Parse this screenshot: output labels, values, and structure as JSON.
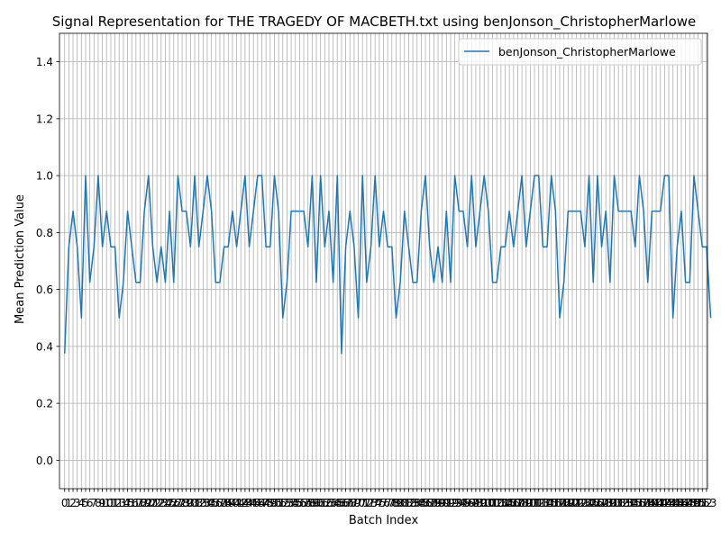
{
  "chart_data": {
    "type": "line",
    "title": "Signal Representation for THE TRAGEDY OF MACBETH.txt using benJonson_ChristopherMarlowe",
    "xlabel": "Batch Index",
    "ylabel": "Mean Prediction Value",
    "ylim": [
      -0.1,
      1.5
    ],
    "xlim": [
      -1.23,
      153.23
    ],
    "yticks": [
      0.0,
      0.2,
      0.4,
      0.6,
      0.8,
      1.0,
      1.2,
      1.4
    ],
    "ytick_labels": [
      "0.0",
      "0.2",
      "0.4",
      "0.6",
      "0.8",
      "1.0",
      "1.2",
      "1.4"
    ],
    "xticks_start": 0,
    "xticks_end": 153,
    "grid": true,
    "legend_position": "top-right",
    "colors": {
      "series": "#1f77b4",
      "grid": "#b0b0b0",
      "axes": "#000000",
      "background": "#ffffff"
    },
    "series": [
      {
        "name": "benJonson_ChristopherMarlowe",
        "x_start": 0,
        "values": [
          0.375,
          0.75,
          0.875,
          0.75,
          0.5,
          1.0,
          0.625,
          0.75,
          1.0,
          0.75,
          0.875,
          0.75,
          0.75,
          0.5,
          0.625,
          0.875,
          0.75,
          0.625,
          0.625,
          0.875,
          1.0,
          0.75,
          0.625,
          0.75,
          0.625,
          0.875,
          0.625,
          1.0,
          0.875,
          0.875,
          0.75,
          1.0,
          0.75,
          0.875,
          1.0,
          0.875,
          0.625,
          0.625,
          0.75,
          0.75,
          0.875,
          0.75,
          0.875,
          1.0,
          0.75,
          0.875,
          1.0,
          1.0,
          0.75,
          0.75,
          1.0,
          0.875,
          0.5,
          0.625,
          0.875,
          0.875,
          0.875,
          0.875,
          0.75,
          1.0,
          0.625,
          1.0,
          0.75,
          0.875,
          0.625,
          1.0,
          0.375,
          0.75,
          0.875,
          0.75,
          0.5,
          1.0,
          0.625,
          0.75,
          1.0,
          0.75,
          0.875,
          0.75,
          0.75,
          0.5,
          0.625,
          0.875,
          0.75,
          0.625,
          0.625,
          0.875,
          1.0,
          0.75,
          0.625,
          0.75,
          0.625,
          0.875,
          0.625,
          1.0,
          0.875,
          0.875,
          0.75,
          1.0,
          0.75,
          0.875,
          1.0,
          0.875,
          0.625,
          0.625,
          0.75,
          0.75,
          0.875,
          0.75,
          0.875,
          1.0,
          0.75,
          0.875,
          1.0,
          1.0,
          0.75,
          0.75,
          1.0,
          0.875,
          0.5,
          0.625,
          0.875,
          0.875,
          0.875,
          0.875,
          0.75,
          1.0,
          0.625,
          1.0,
          0.75,
          0.875,
          0.625,
          1.0,
          0.875,
          0.875,
          0.875,
          0.875,
          0.75,
          1.0,
          0.875,
          0.625,
          0.875,
          0.875,
          0.875,
          1.0,
          1.0,
          0.5,
          0.75,
          0.875,
          0.625,
          0.625,
          1.0,
          0.875,
          0.75,
          0.75,
          0.5
        ]
      }
    ]
  }
}
